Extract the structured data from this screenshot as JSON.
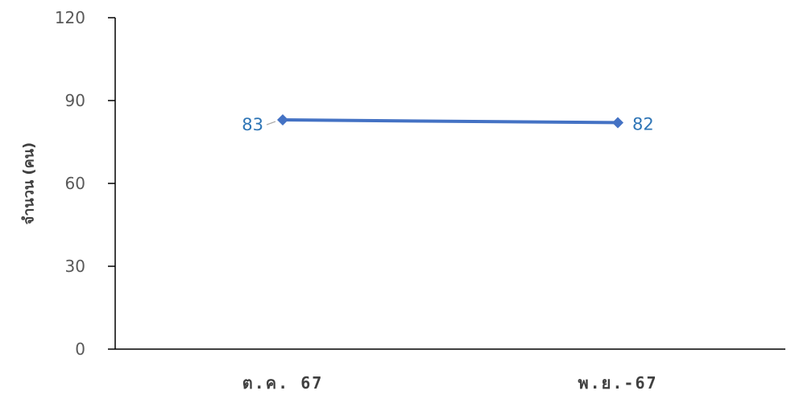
{
  "chart_data": {
    "type": "line",
    "title": "",
    "xlabel": "",
    "ylabel": "จำนวน (คน)",
    "categories": [
      "ต.ค. 67",
      "พ.ย.-67"
    ],
    "series": [
      {
        "values": [
          83,
          82
        ]
      }
    ],
    "ylim": [
      0,
      120
    ],
    "yticks": [
      0,
      30,
      60,
      90,
      120
    ],
    "grid": false,
    "legend": "none",
    "colors": {
      "line": "#4472C4",
      "marker": "#4472C4",
      "data_label": "#2E75B6",
      "axis": "#000000"
    }
  }
}
